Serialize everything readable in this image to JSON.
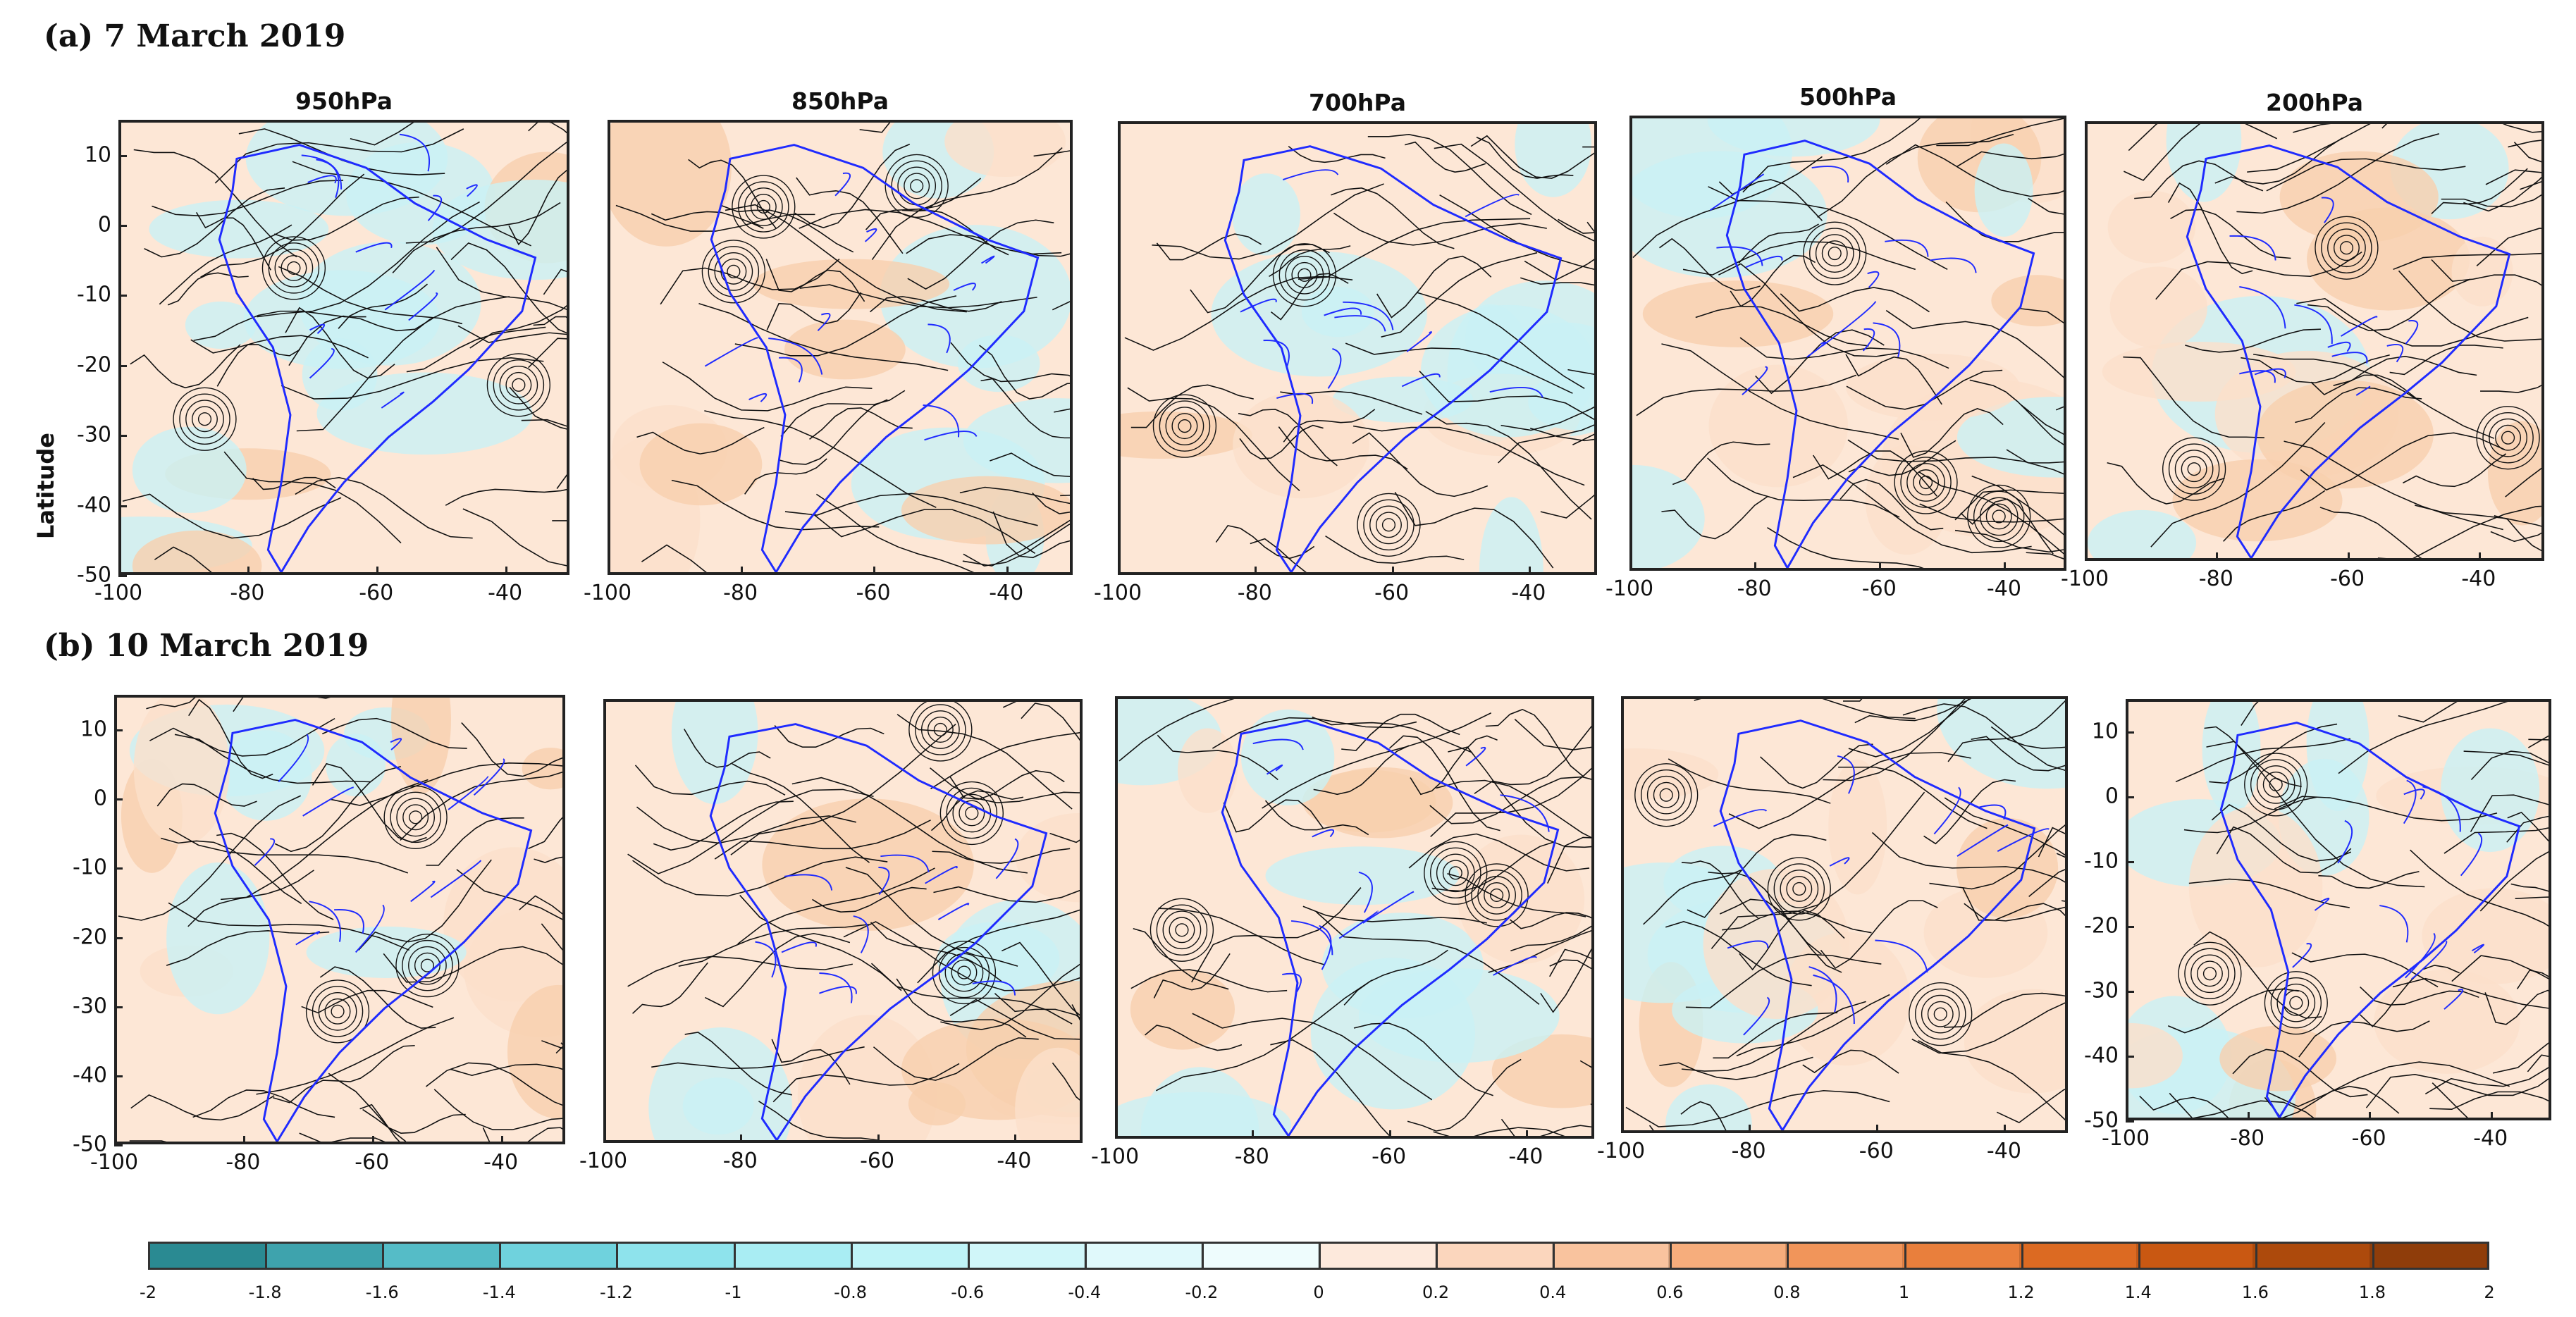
{
  "rows": [
    {
      "label": "(a) 7 March 2019"
    },
    {
      "label": "(b) 10 March 2019"
    }
  ],
  "levels": [
    "950hPa",
    "850hPa",
    "700hPa",
    "500hPa",
    "200hPa"
  ],
  "axes": {
    "ylabel": "Latitude",
    "x_ticks": [
      "-100",
      "-80",
      "-60",
      "-40"
    ],
    "y_ticks": [
      "10",
      "0",
      "-10",
      "-20",
      "-30",
      "-40",
      "-50"
    ]
  },
  "colorbar": {
    "ticks": [
      "-2",
      "-1.8",
      "-1.6",
      "-1.4",
      "-1.2",
      "-1",
      "-0.8",
      "-0.6",
      "-0.4",
      "-0.2",
      "0",
      "0.2",
      "0.4",
      "0.6",
      "0.8",
      "1",
      "1.2",
      "1.4",
      "1.6",
      "1.8",
      "2"
    ],
    "colors": [
      "#2a8a92",
      "#3ea3ad",
      "#55bcc7",
      "#6fd2dd",
      "#8ee3ec",
      "#a9edf3",
      "#bff3f7",
      "#d0f6f9",
      "#e0f9fb",
      "#eefcfd",
      "#fde9dc",
      "#fbd6bd",
      "#f9c39e",
      "#f6ad7c",
      "#f1955a",
      "#e97f3c",
      "#dc6a22",
      "#c95812",
      "#ad4a0c",
      "#8f3d0a"
    ]
  },
  "chart_data": {
    "type": "heatmap",
    "description_fields": "Streamlines over shaded anomaly field, South America; 2 dates x 5 pressure levels",
    "panels": [
      {
        "date": "7 March 2019",
        "level": "950hPa"
      },
      {
        "date": "7 March 2019",
        "level": "850hPa"
      },
      {
        "date": "7 March 2019",
        "level": "700hPa"
      },
      {
        "date": "7 March 2019",
        "level": "500hPa"
      },
      {
        "date": "7 March 2019",
        "level": "200hPa"
      },
      {
        "date": "10 March 2019",
        "level": "950hPa"
      },
      {
        "date": "10 March 2019",
        "level": "850hPa"
      },
      {
        "date": "10 March 2019",
        "level": "700hPa"
      },
      {
        "date": "10 March 2019",
        "level": "500hPa"
      },
      {
        "date": "10 March 2019",
        "level": "200hPa"
      }
    ],
    "xlim": [
      -100,
      -30
    ],
    "ylim": [
      -50,
      15
    ],
    "color_range": [
      -2,
      2
    ],
    "xlabel": "",
    "ylabel": "Latitude"
  }
}
